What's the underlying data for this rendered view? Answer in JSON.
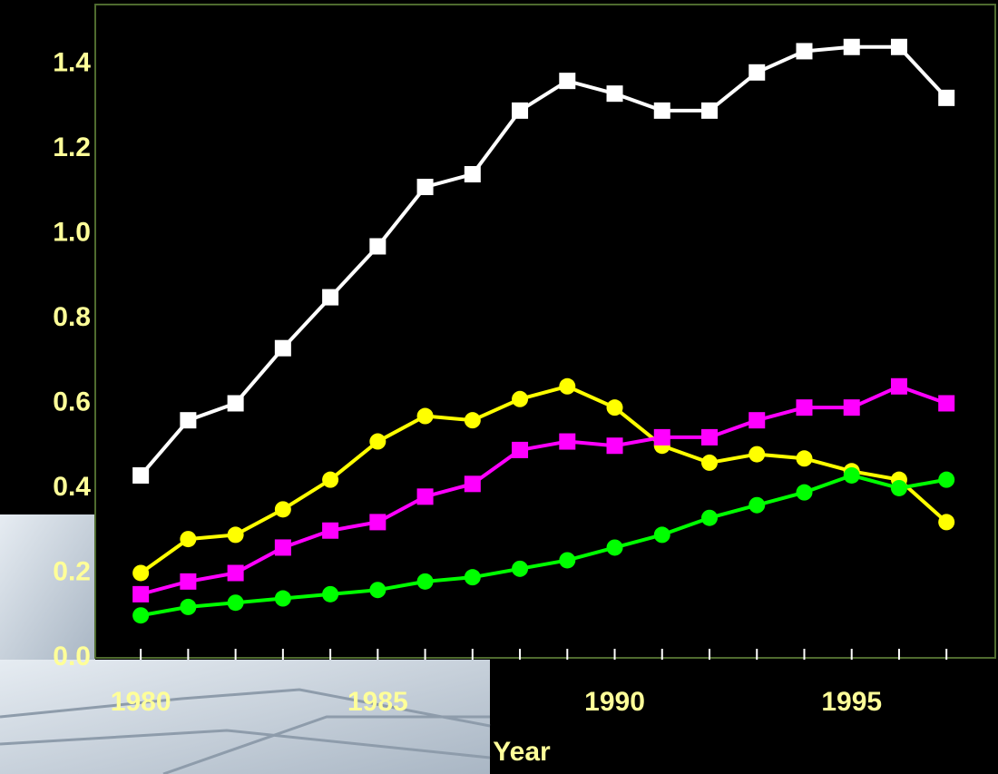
{
  "chart_data": {
    "type": "line",
    "x_label": "Year",
    "x": [
      1980,
      1981,
      1982,
      1983,
      1984,
      1985,
      1986,
      1987,
      1988,
      1989,
      1990,
      1991,
      1992,
      1993,
      1994,
      1995,
      1996,
      1997
    ],
    "xlim": [
      1979.04,
      1998.03
    ],
    "xticks": [
      1980,
      1985,
      1990,
      1995
    ],
    "ylim": [
      0,
      1.54
    ],
    "yticks": [
      {
        "value": 0,
        "label": "0.0"
      },
      0.2,
      0.4,
      0.6,
      0.8,
      {
        "value": 1,
        "label": "1.0"
      },
      1.2,
      1.4
    ],
    "series": [
      {
        "color": "#ffffff",
        "marker": "square",
        "values": [
          0.43,
          0.56,
          0.6,
          0.73,
          0.85,
          0.97,
          1.11,
          1.14,
          1.29,
          1.36,
          1.33,
          1.29,
          1.29,
          1.38,
          1.43,
          1.44,
          1.44,
          1.32
        ]
      },
      {
        "color": "#ffff00",
        "marker": "circle",
        "values": [
          0.2,
          0.28,
          0.29,
          0.35,
          0.42,
          0.51,
          0.57,
          0.56,
          0.61,
          0.64,
          0.59,
          0.5,
          0.46,
          0.48,
          0.47,
          0.44,
          0.42,
          0.32
        ]
      },
      {
        "color": "#ff00ff",
        "marker": "square",
        "values": [
          0.15,
          0.18,
          0.2,
          0.26,
          0.3,
          0.32,
          0.38,
          0.41,
          0.49,
          0.51,
          0.5,
          0.52,
          0.52,
          0.56,
          0.59,
          0.59,
          0.64,
          0.6
        ]
      },
      {
        "color": "#00ff00",
        "marker": "circle",
        "values": [
          0.1,
          0.12,
          0.13,
          0.14,
          0.15,
          0.16,
          0.18,
          0.19,
          0.21,
          0.23,
          0.26,
          0.29,
          0.33,
          0.36,
          0.39,
          0.43,
          0.4,
          0.42
        ]
      }
    ]
  }
}
